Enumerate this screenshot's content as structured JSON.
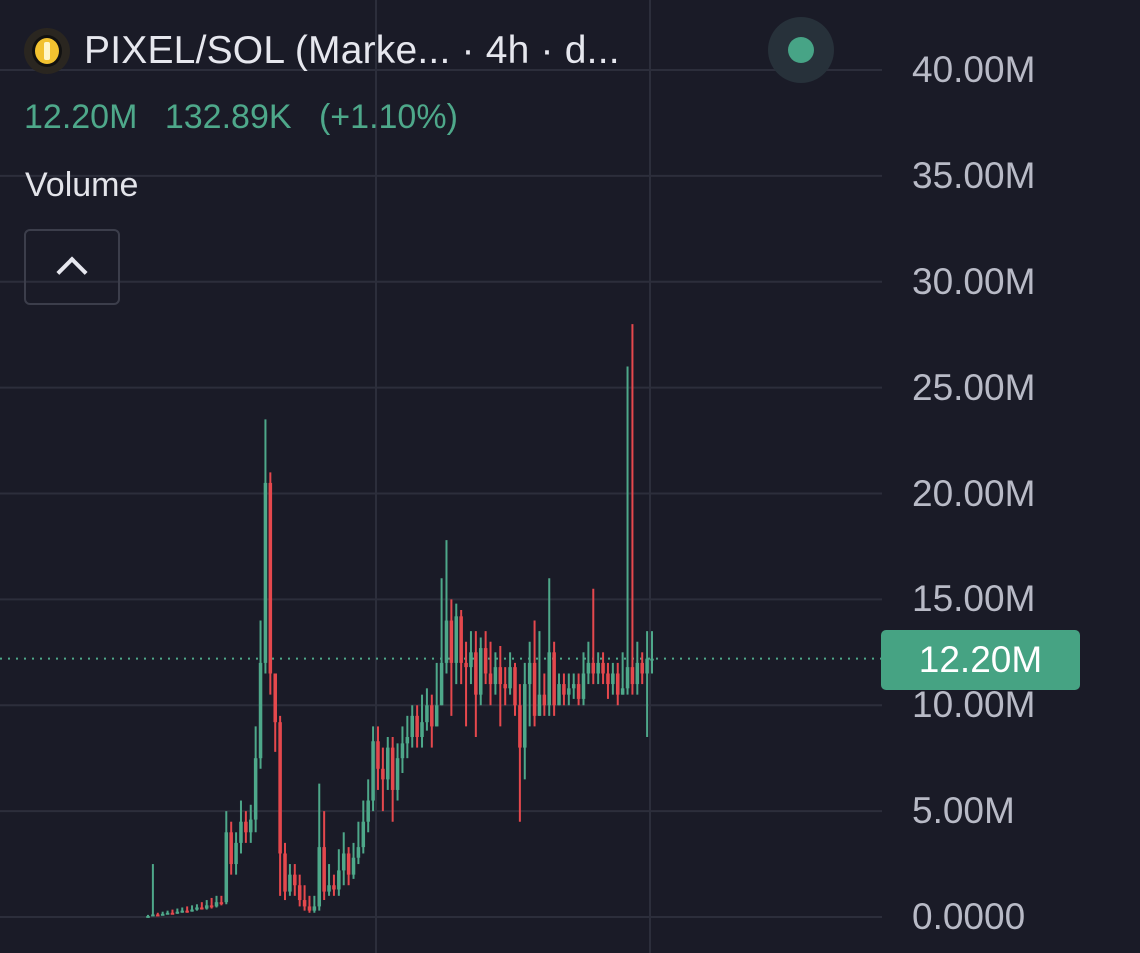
{
  "header": {
    "title": "PIXEL/SOL (Marke... · 4h · d...",
    "coin_icon": "pixel-coin-icon",
    "status_color": "#47a486"
  },
  "stats": {
    "last": "12.20M",
    "change": "132.89K",
    "change_pct": "(+1.10%)",
    "color": "#4ea88a"
  },
  "indicator": {
    "label": "Volume",
    "collapse_icon": "chevron-up-icon"
  },
  "chart_data": {
    "type": "candlestick",
    "y_ticks": [
      "40.00M",
      "35.00M",
      "30.00M",
      "25.00M",
      "20.00M",
      "15.00M",
      "10.00M",
      "5.00M",
      "0.0000"
    ],
    "ylim": [
      0,
      40000000
    ],
    "last_value": 12200000,
    "last_label": "12.20M",
    "colors": {
      "up": "#4ea88a",
      "down": "#e5484d"
    },
    "candles": [
      [
        0.05,
        0.05,
        0.1,
        0.03
      ],
      [
        0.06,
        0.12,
        2.5,
        0.04
      ],
      [
        0.12,
        0.1,
        0.2,
        0.05
      ],
      [
        0.1,
        0.15,
        0.25,
        0.08
      ],
      [
        0.15,
        0.2,
        0.3,
        0.12
      ],
      [
        0.2,
        0.18,
        0.35,
        0.15
      ],
      [
        0.18,
        0.25,
        0.4,
        0.15
      ],
      [
        0.25,
        0.3,
        0.45,
        0.2
      ],
      [
        0.3,
        0.28,
        0.5,
        0.2
      ],
      [
        0.28,
        0.35,
        0.55,
        0.25
      ],
      [
        0.35,
        0.45,
        0.6,
        0.3
      ],
      [
        0.45,
        0.4,
        0.7,
        0.35
      ],
      [
        0.4,
        0.55,
        0.8,
        0.35
      ],
      [
        0.55,
        0.5,
        0.9,
        0.4
      ],
      [
        0.5,
        0.7,
        1.0,
        0.45
      ],
      [
        0.7,
        0.65,
        1.0,
        0.55
      ],
      [
        0.7,
        4.0,
        5.0,
        0.6
      ],
      [
        4.0,
        2.5,
        4.5,
        2.0
      ],
      [
        2.5,
        3.5,
        4.0,
        2.0
      ],
      [
        3.5,
        4.5,
        5.5,
        3.0
      ],
      [
        4.5,
        4.0,
        5.0,
        3.5
      ],
      [
        4.0,
        4.6,
        5.3,
        3.5
      ],
      [
        4.6,
        7.5,
        9.0,
        4.0
      ],
      [
        7.5,
        12.0,
        14.0,
        7.0
      ],
      [
        12.0,
        20.5,
        23.5,
        11.5
      ],
      [
        20.5,
        11.5,
        21.0,
        10.5
      ],
      [
        11.5,
        9.2,
        11.0,
        7.8
      ],
      [
        9.2,
        3.0,
        9.5,
        1.0
      ],
      [
        3.0,
        1.2,
        3.5,
        0.8
      ],
      [
        1.2,
        2.0,
        2.5,
        1.0
      ],
      [
        2.0,
        1.5,
        2.5,
        1.0
      ],
      [
        1.5,
        0.8,
        2.0,
        0.5
      ],
      [
        0.8,
        0.5,
        1.5,
        0.3
      ],
      [
        0.5,
        0.3,
        1.0,
        0.2
      ],
      [
        0.3,
        0.5,
        1.0,
        0.2
      ],
      [
        0.5,
        3.3,
        6.3,
        0.3
      ],
      [
        3.3,
        1.2,
        5.0,
        0.8
      ],
      [
        1.2,
        1.5,
        2.5,
        1.0
      ],
      [
        1.5,
        1.3,
        2.0,
        1.0
      ],
      [
        1.3,
        2.2,
        3.2,
        1.0
      ],
      [
        2.2,
        3.0,
        4.0,
        1.5
      ],
      [
        3.0,
        2.0,
        3.3,
        1.5
      ],
      [
        2.0,
        2.8,
        3.5,
        1.8
      ],
      [
        2.8,
        3.3,
        4.5,
        2.5
      ],
      [
        3.3,
        4.5,
        5.5,
        3.0
      ],
      [
        4.5,
        5.5,
        6.5,
        4.0
      ],
      [
        5.5,
        8.3,
        9.0,
        5.0
      ],
      [
        8.3,
        7.0,
        9.0,
        6.0
      ],
      [
        7.0,
        6.5,
        8.0,
        5.0
      ],
      [
        6.5,
        8.0,
        8.5,
        6.0
      ],
      [
        8.0,
        6.0,
        8.5,
        4.5
      ],
      [
        6.0,
        7.5,
        8.2,
        5.5
      ],
      [
        7.5,
        8.2,
        9.0,
        6.8
      ],
      [
        8.2,
        8.5,
        9.5,
        7.5
      ],
      [
        8.5,
        9.5,
        10.0,
        8.0
      ],
      [
        9.5,
        8.5,
        10.0,
        8.0
      ],
      [
        8.5,
        9.2,
        10.5,
        8.0
      ],
      [
        9.2,
        10.0,
        10.8,
        8.8
      ],
      [
        10.0,
        9.0,
        10.5,
        8.0
      ],
      [
        9.0,
        10.0,
        12.0,
        9.0
      ],
      [
        10.0,
        12.0,
        16.0,
        10.0
      ],
      [
        12.0,
        14.0,
        17.8,
        11.5
      ],
      [
        14.0,
        12.0,
        15.0,
        9.5
      ],
      [
        12.0,
        14.2,
        14.8,
        11.0
      ],
      [
        14.2,
        12.0,
        14.5,
        11.0
      ],
      [
        12.0,
        11.8,
        13.0,
        9.0
      ],
      [
        11.8,
        12.5,
        13.5,
        11.0
      ],
      [
        12.5,
        10.5,
        13.5,
        8.5
      ],
      [
        10.5,
        12.7,
        13.2,
        10.0
      ],
      [
        12.7,
        11.5,
        13.5,
        11.0
      ],
      [
        11.5,
        11.0,
        13.0,
        10.0
      ],
      [
        11.0,
        11.8,
        12.5,
        10.5
      ],
      [
        11.8,
        11.0,
        12.8,
        9.0
      ],
      [
        11.0,
        10.8,
        11.8,
        10.0
      ],
      [
        10.8,
        11.8,
        12.5,
        10.5
      ],
      [
        11.8,
        10.0,
        12.0,
        9.5
      ],
      [
        10.0,
        8.0,
        11.0,
        4.5
      ],
      [
        8.0,
        11.0,
        12.0,
        6.5
      ],
      [
        11.0,
        12.0,
        13.0,
        9.0
      ],
      [
        12.0,
        9.5,
        14.0,
        9.0
      ],
      [
        9.5,
        10.5,
        13.5,
        9.5
      ],
      [
        10.5,
        10.0,
        11.5,
        9.5
      ],
      [
        10.0,
        12.5,
        16.0,
        9.5
      ],
      [
        12.5,
        10.0,
        13.0,
        9.5
      ],
      [
        10.0,
        11.0,
        11.5,
        10.0
      ],
      [
        11.0,
        10.5,
        11.5,
        10.0
      ],
      [
        10.5,
        10.8,
        11.5,
        10.0
      ],
      [
        10.8,
        11.0,
        11.5,
        10.3
      ],
      [
        11.0,
        10.3,
        11.5,
        10.0
      ],
      [
        10.3,
        11.5,
        12.5,
        10.0
      ],
      [
        11.5,
        12.0,
        13.0,
        11.0
      ],
      [
        12.0,
        11.5,
        15.5,
        11.0
      ],
      [
        11.5,
        12.0,
        12.5,
        11.0
      ],
      [
        12.0,
        11.5,
        12.5,
        11.0
      ],
      [
        11.5,
        11.0,
        12.0,
        10.3
      ],
      [
        11.0,
        11.5,
        12.0,
        10.5
      ],
      [
        11.5,
        10.5,
        12.0,
        10.0
      ],
      [
        10.5,
        10.8,
        12.5,
        10.5
      ],
      [
        10.8,
        11.8,
        26.0,
        10.5
      ],
      [
        11.8,
        11.0,
        28.0,
        10.5
      ],
      [
        11.0,
        12.0,
        13.0,
        10.5
      ],
      [
        12.0,
        11.5,
        12.5,
        11.0
      ],
      [
        11.5,
        12.2,
        13.5,
        8.5
      ],
      [
        12.2,
        12.2,
        13.5,
        11.5
      ]
    ]
  }
}
